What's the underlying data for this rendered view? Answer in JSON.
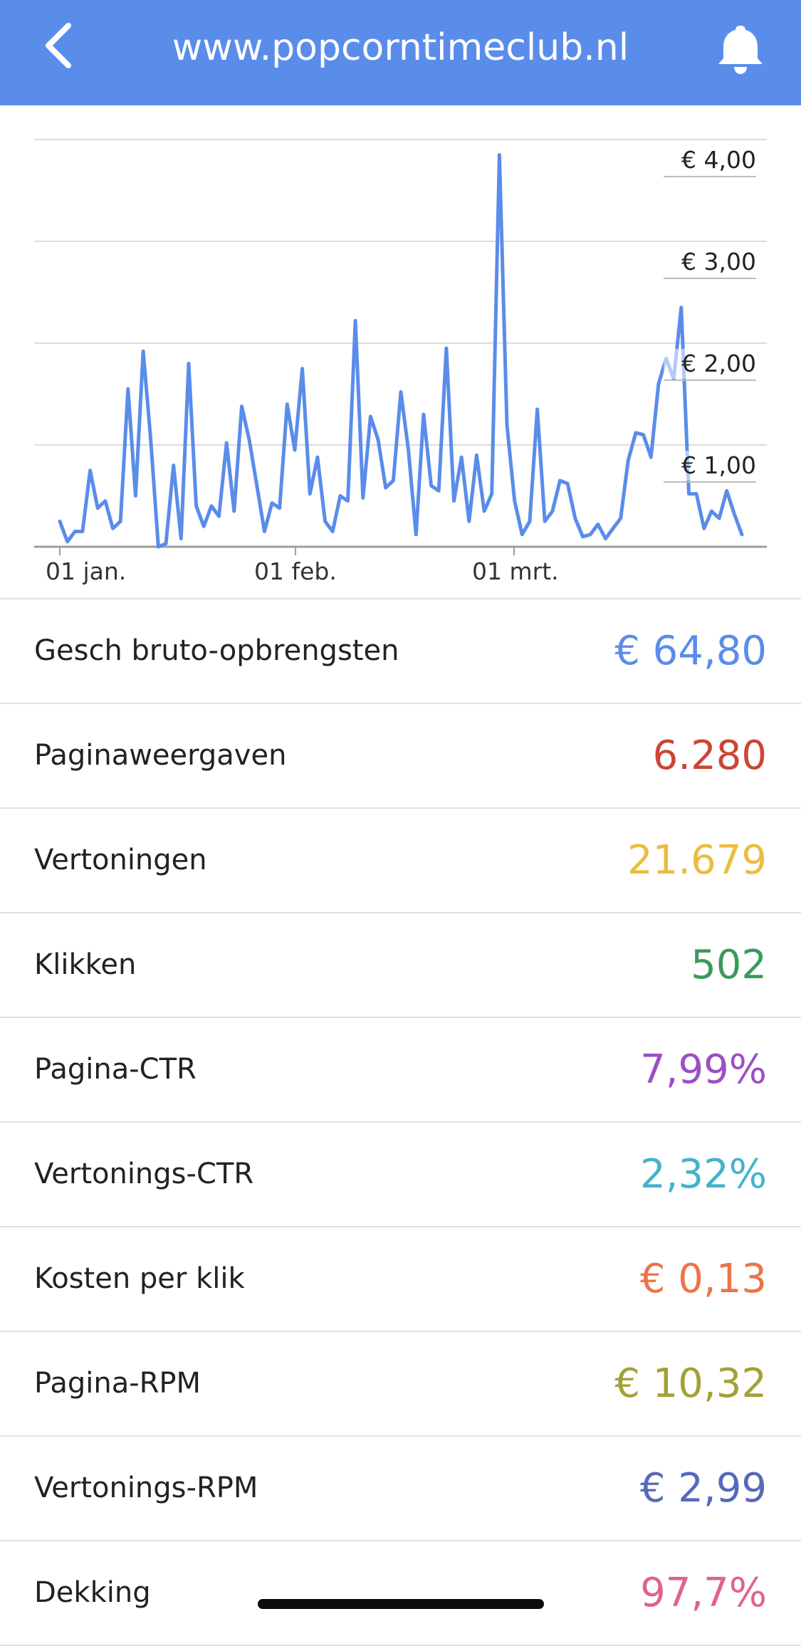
{
  "topbar": {
    "title": "www.popcorntimeclub.nl",
    "back_icon": "chevron-left-icon",
    "notification_icon": "bell-icon",
    "background": "#5a8cea"
  },
  "chart_data": {
    "type": "line",
    "x_tick_labels": [
      "01 jan.",
      "01 feb.",
      "01 mrt."
    ],
    "y_tick_labels": [
      "€ 1,00",
      "€ 2,00",
      "€ 3,00",
      "€ 4,00"
    ],
    "ylim": [
      0,
      4
    ],
    "grid": true,
    "series_color": "#5a8cea",
    "series": [
      {
        "values": [
          0.25,
          0.05,
          0.15,
          0.15,
          0.75,
          0.38,
          0.45,
          0.18,
          0.25,
          1.55,
          0.5,
          1.92,
          1.05,
          0.0,
          0.03,
          0.8,
          0.08,
          1.8,
          0.4,
          0.2,
          0.4,
          0.3,
          1.02,
          0.35,
          1.38,
          1.05,
          0.6,
          0.15,
          0.43,
          0.38,
          1.4,
          0.95,
          1.75,
          0.52,
          0.88,
          0.25,
          0.15,
          0.5,
          0.45,
          2.22,
          0.48,
          1.28,
          1.05,
          0.58,
          0.65,
          1.52,
          0.95,
          0.12,
          1.3,
          0.6,
          0.55,
          1.95,
          0.45,
          0.88,
          0.25,
          0.9,
          0.35,
          0.52,
          3.85,
          1.2,
          0.45,
          0.12,
          0.25,
          1.35,
          0.25,
          0.35,
          0.65,
          0.62,
          0.28,
          0.1,
          0.12,
          0.22,
          0.08,
          0.18,
          0.28,
          0.85,
          1.12,
          1.1,
          0.88,
          1.6,
          1.85,
          1.65,
          2.35,
          0.52,
          0.52,
          0.18,
          0.35,
          0.28,
          0.55,
          0.32,
          0.12
        ]
      }
    ]
  },
  "metrics": [
    {
      "label": "Gesch bruto-opbrengsten",
      "value": "€ 64,80",
      "color": "#5a8cea"
    },
    {
      "label": "Paginaweergaven",
      "value": "6.280",
      "color": "#cd4436"
    },
    {
      "label": "Vertoningen",
      "value": "21.679",
      "color": "#ecbc3e"
    },
    {
      "label": "Klikken",
      "value": "502",
      "color": "#3a9a5c"
    },
    {
      "label": "Pagina-CTR",
      "value": "7,99%",
      "color": "#9c4fc4"
    },
    {
      "label": "Vertonings-CTR",
      "value": "2,32%",
      "color": "#45b2cc"
    },
    {
      "label": "Kosten per klik",
      "value": "€ 0,13",
      "color": "#ec7448"
    },
    {
      "label": "Pagina-RPM",
      "value": "€ 10,32",
      "color": "#a3a136"
    },
    {
      "label": "Vertonings-RPM",
      "value": "€ 2,99",
      "color": "#5769ba"
    },
    {
      "label": "Dekking",
      "value": "97,7%",
      "color": "#e0628e"
    }
  ]
}
